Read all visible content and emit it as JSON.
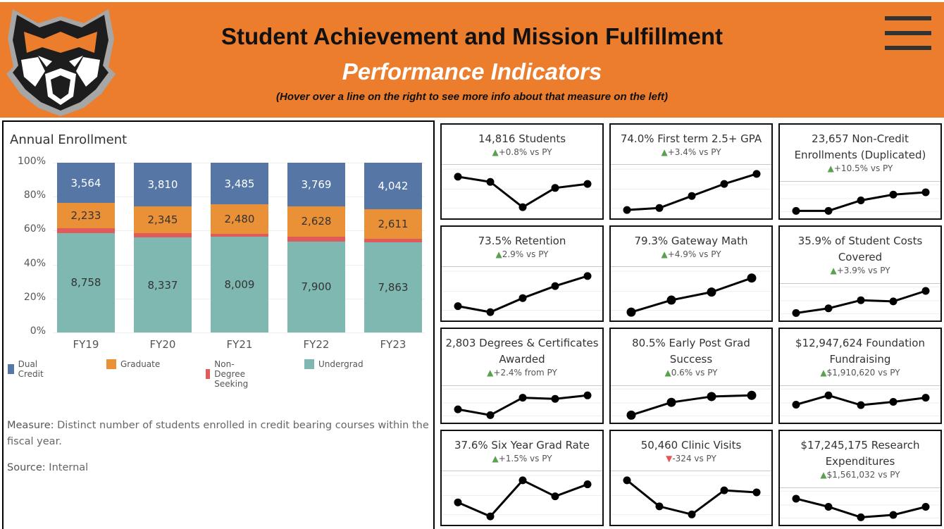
{
  "header": {
    "title": "Student Achievement and Mission Fulfillment",
    "subtitle": "Performance Indicators",
    "hint": "(Hover over a line on the right to see more info about that measure on the left)",
    "logo_icon": "tiger-head-logo-icon",
    "menu_icon": "hamburger-menu-icon",
    "brand_color": "#ec7d2d"
  },
  "left_panel": {
    "chart_title": "Annual Enrollment",
    "measure_label": "Measure:",
    "measure_text": "Distinct number of students enrolled in credit bearing courses within the fiscal year.",
    "source_label": "Source:",
    "source_text": "Internal"
  },
  "chart_data": [
    {
      "type": "bar",
      "stacked": true,
      "normalized_percent": true,
      "title": "Annual Enrollment",
      "xlabel": "",
      "ylabel": "",
      "ylim": [
        0,
        100
      ],
      "y_ticks": [
        "0%",
        "20%",
        "40%",
        "60%",
        "80%",
        "100%"
      ],
      "categories": [
        "FY19",
        "FY20",
        "FY21",
        "FY22",
        "FY23"
      ],
      "legend_position": "bottom",
      "grid": true,
      "series": [
        {
          "name": "Undergrad",
          "color": "#7fb7b1",
          "values": [
            8758,
            8337,
            8009,
            7900,
            7863
          ],
          "labels": [
            "8,758",
            "8,337",
            "8,009",
            "7,900",
            "7,863"
          ]
        },
        {
          "name": "Non-Degree Seeking",
          "color": "#e05c5c",
          "values": [
            400,
            400,
            250,
            420,
            300
          ],
          "labels": [
            "",
            "",
            "",
            "",
            ""
          ]
        },
        {
          "name": "Graduate",
          "color": "#ea9137",
          "values": [
            2233,
            2345,
            2480,
            2628,
            2611
          ],
          "labels": [
            "2,233",
            "2,345",
            "2,480",
            "2,628",
            "2,611"
          ]
        },
        {
          "name": "Dual Credit",
          "color": "#5677a6",
          "values": [
            3564,
            3810,
            3485,
            3769,
            4042
          ],
          "labels": [
            "3,564",
            "3,810",
            "3,485",
            "3,769",
            "4,042"
          ]
        }
      ],
      "legend": [
        {
          "name": "Dual Credit",
          "color": "#5677a6"
        },
        {
          "name": "Graduate",
          "color": "#ea9137"
        },
        {
          "name": "Non-Degree Seeking",
          "color": "#e05c5c"
        },
        {
          "name": "Undergrad",
          "color": "#7fb7b1"
        }
      ]
    },
    {
      "type": "line",
      "title": "14,816 Students",
      "x": [
        1,
        2,
        3,
        4,
        5
      ],
      "values": [
        0.88,
        0.75,
        0.12,
        0.6,
        0.7
      ]
    },
    {
      "type": "line",
      "title": "74.0% First term 2.5+ GPA",
      "x": [
        1,
        2,
        3,
        4,
        5
      ],
      "values": [
        0.05,
        0.1,
        0.4,
        0.7,
        0.95
      ]
    },
    {
      "type": "line",
      "title": "23,657 Non-Credit Enrollments (Duplicated)",
      "x": [
        1,
        2,
        3,
        4,
        5
      ],
      "values": [
        0.05,
        0.05,
        0.5,
        0.75,
        0.85
      ]
    },
    {
      "type": "line",
      "title": "73.5% Retention",
      "x": [
        1,
        2,
        3,
        4,
        5
      ],
      "values": [
        0.2,
        0.05,
        0.4,
        0.7,
        0.95
      ]
    },
    {
      "type": "line",
      "title": "79.3% Gateway Math",
      "x": [
        1,
        2,
        3,
        4
      ],
      "values": [
        0.05,
        0.35,
        0.55,
        0.9
      ]
    },
    {
      "type": "line",
      "title": "35.9% of Student Costs Covered",
      "x": [
        1,
        2,
        3,
        4,
        5
      ],
      "values": [
        0.05,
        0.25,
        0.6,
        0.55,
        1.0
      ]
    },
    {
      "type": "line",
      "title": "2,803 Degrees & Certificates Awarded",
      "x": [
        1,
        2,
        3,
        4,
        5
      ],
      "values": [
        0.3,
        0.05,
        0.8,
        0.75,
        0.9
      ]
    },
    {
      "type": "line",
      "title": "80.5% Early Post Grad Success",
      "x": [
        1,
        2,
        3,
        4
      ],
      "values": [
        0.05,
        0.6,
        0.85,
        0.9
      ]
    },
    {
      "type": "line",
      "title": "$12,947,624 Foundation Fundraising",
      "x": [
        1,
        2,
        3,
        4,
        5
      ],
      "values": [
        0.5,
        0.9,
        0.48,
        0.62,
        0.8
      ]
    },
    {
      "type": "line",
      "title": "37.6% Six Year Grad Rate",
      "x": [
        1,
        2,
        3,
        4,
        5
      ],
      "values": [
        0.4,
        0.05,
        0.95,
        0.55,
        0.85
      ]
    },
    {
      "type": "line",
      "title": "50,460 Clinic Visits",
      "x": [
        1,
        2,
        3,
        4,
        5
      ],
      "values": [
        0.95,
        0.3,
        0.1,
        0.7,
        0.65
      ]
    },
    {
      "type": "line",
      "title": "$17,245,175 Research Expenditures",
      "x": [
        1,
        2,
        3,
        4,
        5
      ],
      "values": [
        0.85,
        0.5,
        0.05,
        0.15,
        0.5
      ]
    }
  ],
  "cards": [
    {
      "title": "14,816 Students",
      "direction": "up",
      "delta": "+0.8% vs PY"
    },
    {
      "title": "74.0% First term 2.5+ GPA",
      "direction": "up",
      "delta": "+3.4% vs PY"
    },
    {
      "title": "23,657 Non-Credit Enrollments (Duplicated)",
      "direction": "up",
      "delta": "+10.5% vs PY"
    },
    {
      "title": "73.5% Retention",
      "direction": "up",
      "delta": "2.9% vs PY"
    },
    {
      "title": "79.3% Gateway Math",
      "direction": "up",
      "delta": "+4.9% vs PY"
    },
    {
      "title": "35.9% of Student Costs Covered",
      "direction": "up",
      "delta": "+3.9% vs PY"
    },
    {
      "title": "2,803 Degrees & Certificates Awarded",
      "direction": "up",
      "delta": "+2.4% from PY"
    },
    {
      "title": "80.5% Early Post Grad Success",
      "direction": "up",
      "delta": "0.6% vs PY"
    },
    {
      "title": "$12,947,624 Foundation Fundraising",
      "direction": "up",
      "delta": "$1,910,620 vs PY"
    },
    {
      "title": "37.6% Six Year Grad Rate",
      "direction": "up",
      "delta": "+1.5% vs PY"
    },
    {
      "title": "50,460 Clinic Visits",
      "direction": "down",
      "delta": "-324 vs PY"
    },
    {
      "title": "$17,245,175 Research Expenditures",
      "direction": "up",
      "delta": "$1,561,032 vs PY"
    }
  ],
  "colors": {
    "up": "#59a14f",
    "down": "#e15759",
    "line": "#000000"
  }
}
